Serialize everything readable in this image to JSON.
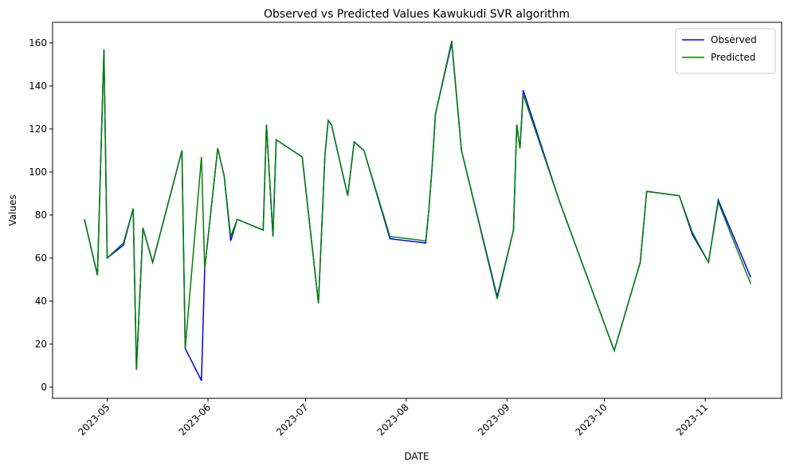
{
  "chart_data": {
    "type": "line",
    "title": "Observed vs Predicted Values Kawukudi SVR algorithm",
    "x_label": "DATE",
    "y_label": "Values",
    "x": [
      19471,
      19475,
      19477,
      19478,
      19483,
      19486,
      19487,
      19489,
      19492,
      19501,
      19502,
      19507,
      19508,
      19512,
      19514,
      19516,
      19518,
      19526,
      19527,
      19529,
      19530,
      19538,
      19543,
      19545,
      19546,
      19547,
      19552,
      19554,
      19557,
      19565,
      19576,
      19577,
      19578,
      19579,
      19584,
      19587,
      19598,
      19603,
      19604,
      19605,
      19606,
      19617,
      19634,
      19642,
      19644,
      19654,
      19658,
      19663,
      19666,
      19676
    ],
    "series": [
      {
        "name": "Observed",
        "color": "#0000ff",
        "values": [
          78,
          52,
          157,
          60,
          66,
          83,
          8,
          74,
          58,
          110,
          18,
          3,
          55,
          111,
          98,
          68,
          78,
          73,
          122,
          70,
          115,
          107,
          39,
          108,
          124,
          122,
          89,
          114,
          110,
          69,
          67,
          83,
          103,
          127,
          160,
          110,
          42,
          73,
          122,
          111,
          138,
          87,
          17,
          58,
          91,
          89,
          71,
          58,
          87,
          51
        ]
      },
      {
        "name": "Predicted",
        "color": "#008000",
        "values": [
          78,
          52,
          157,
          60,
          67,
          83,
          8,
          74,
          58,
          110,
          18,
          107,
          55,
          111,
          98,
          70,
          78,
          73,
          122,
          70,
          115,
          107,
          39,
          108,
          124,
          122,
          89,
          114,
          110,
          70,
          68,
          83,
          103,
          127,
          161,
          110,
          41,
          73,
          122,
          111,
          136,
          87,
          17,
          58,
          91,
          89,
          72,
          58,
          86,
          48
        ]
      }
    ],
    "xlim": [
      19461.2,
      19685.5
    ],
    "xticks": [
      {
        "value": 19478,
        "label": "2023-05"
      },
      {
        "value": 19509,
        "label": "2023-06"
      },
      {
        "value": 19539,
        "label": "2023-07"
      },
      {
        "value": 19570,
        "label": "2023-08"
      },
      {
        "value": 19601,
        "label": "2023-09"
      },
      {
        "value": 19631,
        "label": "2023-10"
      },
      {
        "value": 19662,
        "label": "2023-11"
      }
    ],
    "ylim": [
      -5.2,
      169.6
    ],
    "yticks": [
      0,
      20,
      40,
      60,
      80,
      100,
      120,
      140,
      160
    ],
    "legend": "upper right",
    "grid": false
  }
}
